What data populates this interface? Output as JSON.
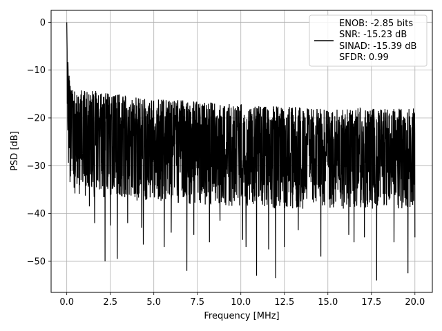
{
  "chart_data": {
    "type": "line",
    "title": "",
    "xlabel": "Frequency [MHz]",
    "ylabel": "PSD [dB]",
    "xlim": [
      -0.9,
      21.0
    ],
    "ylim": [
      -56.5,
      2.5
    ],
    "xticks": [
      0.0,
      2.5,
      5.0,
      7.5,
      10.0,
      12.5,
      15.0,
      17.5,
      20.0
    ],
    "xtick_labels": [
      "0.0",
      "2.5",
      "5.0",
      "7.5",
      "10.0",
      "12.5",
      "15.0",
      "17.5",
      "20.0"
    ],
    "yticks": [
      0,
      -10,
      -20,
      -30,
      -40,
      -50
    ],
    "ytick_labels": [
      "0",
      "−10",
      "−20",
      "−30",
      "−40",
      "−50"
    ],
    "grid": true,
    "legend_position": "top-right",
    "legend_entries": [
      "ENOB: -2.85 bits",
      "SNR: -15.23 dB",
      "SINAD: -15.39 dB",
      "SFDR: 0.99"
    ],
    "line_color": "#000000",
    "series": [
      {
        "x": [
          0.0,
          0.02,
          0.05,
          0.08,
          0.1,
          0.15,
          0.2,
          0.3,
          0.5,
          1.0,
          2.0,
          3.0,
          4.0,
          5.0,
          6.0,
          7.0,
          8.0,
          9.0,
          10.0,
          11.0,
          12.0,
          13.0,
          14.0,
          15.0,
          16.0,
          17.0,
          18.0,
          19.0,
          20.0
        ],
        "upper": [
          0.0,
          -2.0,
          -6.0,
          -9.0,
          -10.0,
          -11.0,
          -12.0,
          -13.0,
          -13.5,
          -14.0,
          -14.5,
          -15.0,
          -15.5,
          -16.0,
          -16.0,
          -16.5,
          -16.5,
          -17.0,
          -17.0,
          -17.5,
          -17.5,
          -17.5,
          -18.0,
          -18.0,
          -18.0,
          -18.0,
          -18.0,
          -18.0,
          -18.0
        ],
        "center": [
          0.0,
          -3.0,
          -8.0,
          -14.0,
          -18.0,
          -20.0,
          -21.0,
          -22.0,
          -22.5,
          -23.0,
          -23.5,
          -24.0,
          -24.5,
          -25.0,
          -25.0,
          -25.5,
          -25.5,
          -26.0,
          -26.0,
          -26.0,
          -26.5,
          -26.5,
          -26.5,
          -27.0,
          -27.0,
          -27.0,
          -27.0,
          -27.0,
          -27.0
        ],
        "lower": [
          -8.0,
          -20.0,
          -25.0,
          -29.0,
          -31.0,
          -33.0,
          -34.0,
          -35.0,
          -36.0,
          -36.5,
          -37.0,
          -37.0,
          -37.5,
          -37.5,
          -38.0,
          -38.0,
          -38.5,
          -38.5,
          -38.5,
          -38.5,
          -39.0,
          -39.0,
          -39.0,
          -39.0,
          -39.0,
          -39.0,
          -39.0,
          -39.0,
          -39.0
        ],
        "dips": [
          [
            1.3,
            -38.5
          ],
          [
            1.6,
            -42.0
          ],
          [
            2.2,
            -50.0
          ],
          [
            2.5,
            -42.5
          ],
          [
            2.9,
            -49.5
          ],
          [
            3.5,
            -42.0
          ],
          [
            4.3,
            -43.0
          ],
          [
            4.4,
            -46.5
          ],
          [
            5.6,
            -47.0
          ],
          [
            6.0,
            -44.0
          ],
          [
            6.9,
            -52.0
          ],
          [
            7.3,
            -44.5
          ],
          [
            8.2,
            -46.0
          ],
          [
            8.8,
            -41.5
          ],
          [
            10.1,
            -45.5
          ],
          [
            10.3,
            -47.0
          ],
          [
            10.9,
            -53.0
          ],
          [
            11.6,
            -47.5
          ],
          [
            12.0,
            -53.5
          ],
          [
            12.5,
            -47.0
          ],
          [
            13.3,
            -43.5
          ],
          [
            14.6,
            -49.0
          ],
          [
            16.2,
            -44.5
          ],
          [
            16.5,
            -46.0
          ],
          [
            17.1,
            -45.0
          ],
          [
            17.8,
            -54.0
          ],
          [
            18.8,
            -46.0
          ],
          [
            19.6,
            -52.5
          ],
          [
            20.0,
            -45.0
          ]
        ],
        "n_points": 2048
      }
    ]
  }
}
